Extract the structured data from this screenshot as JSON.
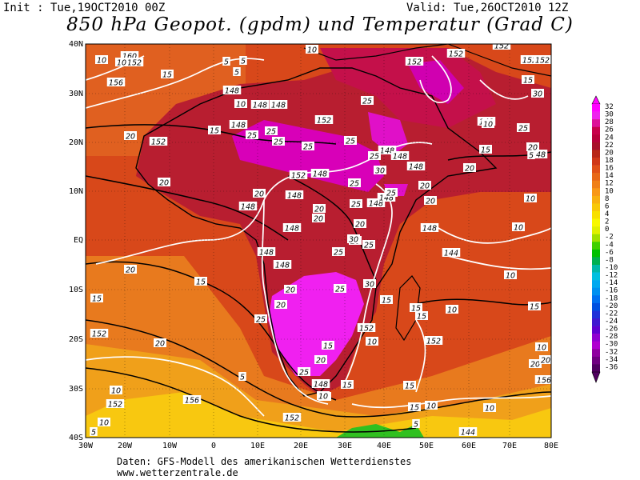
{
  "header": {
    "init": "Init : Tue,19OCT2010 00Z",
    "valid": "Valid: Tue,26OCT2010 12Z",
    "title": "850 hPa Geopot. (gpdm) und Temperatur (Grad C)"
  },
  "axes": {
    "lat_labels": [
      "40N",
      "30N",
      "20N",
      "10N",
      "EQ",
      "10S",
      "20S",
      "30S",
      "40S"
    ],
    "lon_labels": [
      "30W",
      "20W",
      "10W",
      "0",
      "10E",
      "20E",
      "30E",
      "40E",
      "50E",
      "60E",
      "70E",
      "80E"
    ]
  },
  "colorbar": {
    "labels": [
      "32",
      "30",
      "28",
      "26",
      "24",
      "22",
      "20",
      "18",
      "16",
      "14",
      "12",
      "10",
      "8",
      "6",
      "4",
      "2",
      "0",
      "-2",
      "-4",
      "-6",
      "-8",
      "-10",
      "-12",
      "-14",
      "-16",
      "-18",
      "-20",
      "-22",
      "-24",
      "-26",
      "-28",
      "-30",
      "-32",
      "-34",
      "-36"
    ],
    "colors": [
      "#ff00ff",
      "#ee22ee",
      "#dd1199",
      "#c8004a",
      "#b8003a",
      "#a8102a",
      "#b82818",
      "#d03818",
      "#e05018",
      "#e86818",
      "#f08018",
      "#f89818",
      "#f8b010",
      "#f8c808",
      "#f8e000",
      "#f8f800",
      "#e0f000",
      "#a0e000",
      "#40d000",
      "#00c000",
      "#00b050",
      "#00b8a8",
      "#00c0e0",
      "#00a8f0",
      "#0090f0",
      "#0070f0",
      "#0050e0",
      "#2030d8",
      "#4018d0",
      "#6000d0",
      "#9000d0",
      "#b000d0",
      "#9000a0",
      "#700080",
      "#500060"
    ]
  },
  "labels": {
    "geopot": [
      "160",
      "156",
      "152",
      "148",
      "148",
      "148",
      "152",
      "148",
      "152",
      "152",
      "148",
      "148",
      "148",
      "148",
      "152",
      "148",
      "148",
      "148",
      "148",
      "148",
      "144",
      "148",
      "152",
      "152",
      "152",
      "156",
      "152",
      "152",
      "148",
      "144",
      "152",
      "156",
      "148",
      "148",
      "152",
      "152",
      "152",
      "148",
      "148"
    ],
    "temp": [
      "10",
      "5",
      "5",
      "5",
      "10",
      "15",
      "10",
      "15",
      "10",
      "20",
      "25",
      "25",
      "25",
      "25",
      "25",
      "25",
      "25",
      "25",
      "30",
      "25",
      "20",
      "20",
      "20",
      "20",
      "20",
      "20",
      "20",
      "20",
      "25",
      "25",
      "20",
      "20",
      "25",
      "30",
      "25",
      "30",
      "25",
      "25",
      "15",
      "20",
      "15",
      "20",
      "15",
      "15",
      "10",
      "15",
      "20",
      "20",
      "15",
      "10",
      "15",
      "10",
      "10",
      "10",
      "5",
      "15",
      "20",
      "25",
      "30",
      "15",
      "10",
      "5",
      "10",
      "10",
      "5",
      "20",
      "15",
      "10",
      "15",
      "10",
      "20",
      "20",
      "15",
      "10",
      "10",
      "5"
    ]
  },
  "footer": {
    "line1": "Daten: GFS-Modell des amerikanischen Wetterdienstes",
    "line2": "www.wetterzentrale.de"
  }
}
